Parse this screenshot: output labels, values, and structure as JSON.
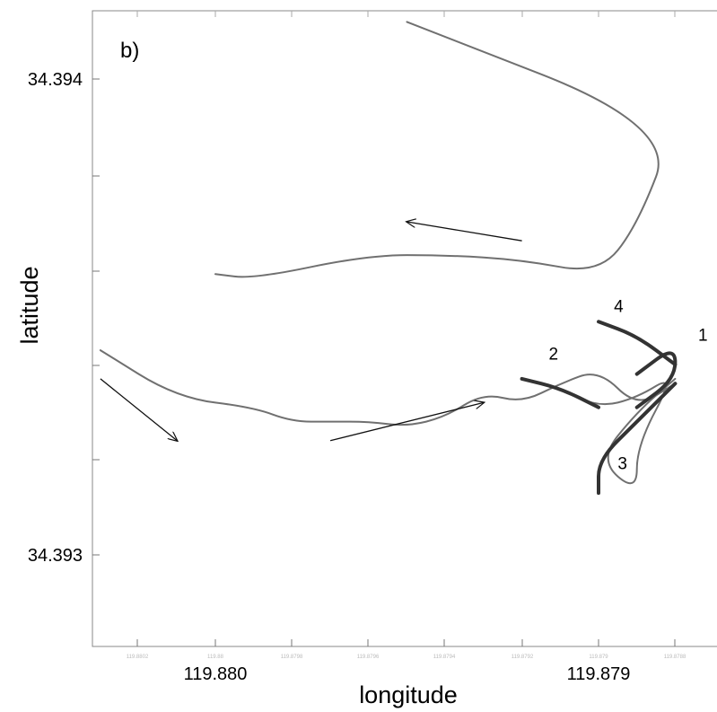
{
  "chart_data": {
    "type": "line",
    "panel_label": "b)",
    "xlabel": "longitude",
    "ylabel": "latitude",
    "x_ticks": [
      "119.880",
      "119.879"
    ],
    "y_ticks": [
      "34.394",
      "34.393"
    ],
    "x_minor_labels": [
      "119.8802",
      "119.88",
      "119.8798",
      "119.8796",
      "119.8794",
      "119.8792",
      "119.879",
      "119.8788"
    ],
    "track_color": "#707070",
    "highlight_color": "#333333",
    "segment_labels": [
      "1",
      "2",
      "3",
      "4"
    ],
    "series": [
      {
        "role": "outbound-west",
        "points": [
          [
            119.8795,
            34.39412
          ],
          [
            119.8788,
            34.3939
          ],
          [
            119.8789,
            34.39369
          ],
          [
            119.879,
            34.39359
          ],
          [
            119.8792,
            34.39362
          ],
          [
            119.8794,
            34.39363
          ],
          [
            119.8796,
            34.39363
          ],
          [
            119.8799,
            34.39358
          ],
          [
            119.88,
            34.39359
          ]
        ]
      },
      {
        "role": "west-loop-return",
        "points": [
          [
            119.8803,
            34.39343
          ],
          [
            119.8801,
            34.39333
          ],
          [
            119.8799,
            34.39331
          ],
          [
            119.8798,
            34.39328
          ],
          [
            119.8797,
            34.39328
          ],
          [
            119.8796,
            34.39328
          ],
          [
            119.8795,
            34.39327
          ],
          [
            119.8794,
            34.39329
          ],
          [
            119.8793,
            34.39334
          ],
          [
            119.8792,
            34.39332
          ],
          [
            119.8791,
            34.39336
          ],
          [
            119.879,
            34.39339
          ],
          [
            119.8789,
            34.39331
          ],
          [
            119.8788,
            34.39336
          ]
        ]
      },
      {
        "role": "thin-branches",
        "points": [
          [
            119.8792,
            34.39337
          ],
          [
            119.8791,
            34.39335
          ],
          [
            119.879,
            34.39331
          ],
          [
            119.8789,
            34.39333
          ],
          [
            119.8788,
            34.39338
          ],
          [
            119.8789,
            34.39323
          ],
          [
            119.8789,
            34.39313
          ],
          [
            119.879,
            34.3932
          ],
          [
            119.8789,
            34.3933
          ],
          [
            119.8788,
            34.39337
          ]
        ]
      },
      {
        "role": "segment-1",
        "label": "1",
        "points": [
          [
            119.8789,
            34.39338
          ],
          [
            119.8788,
            34.39344
          ],
          [
            119.8788,
            34.39337
          ],
          [
            119.8789,
            34.39331
          ]
        ]
      },
      {
        "role": "segment-2",
        "label": "2",
        "points": [
          [
            119.8792,
            34.39337
          ],
          [
            119.8791,
            34.39335
          ],
          [
            119.879,
            34.39331
          ]
        ]
      },
      {
        "role": "segment-3",
        "label": "3",
        "points": [
          [
            119.879,
            34.39313
          ],
          [
            119.879,
            34.3932
          ],
          [
            119.8789,
            34.39328
          ],
          [
            119.8788,
            34.39336
          ]
        ]
      },
      {
        "role": "segment-4",
        "label": "4",
        "points": [
          [
            119.879,
            34.39349
          ],
          [
            119.8789,
            34.39346
          ],
          [
            119.8788,
            34.3934
          ]
        ]
      }
    ],
    "arrows": [
      {
        "direction": "west",
        "from": [
          119.8792,
          34.39366
        ],
        "to": [
          119.8795,
          34.3937
        ]
      },
      {
        "direction": "south-east",
        "from": [
          119.8803,
          34.39337
        ],
        "to": [
          119.8801,
          34.39324
        ]
      },
      {
        "direction": "north-east",
        "from": [
          119.8797,
          34.39324
        ],
        "to": [
          119.8793,
          34.39332
        ]
      }
    ],
    "grid": false,
    "legend": "none"
  }
}
